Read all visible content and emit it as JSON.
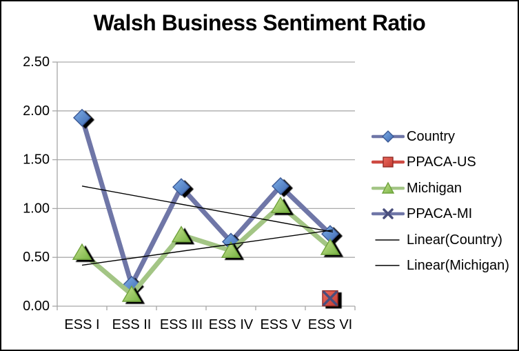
{
  "chart_data": {
    "type": "line",
    "title": "Walsh Business Sentiment Ratio",
    "categories": [
      "ESS I",
      "ESS II",
      "ESS III",
      "ESS IV",
      "ESS V",
      "ESS VI"
    ],
    "y_tick_labels": [
      "0.00",
      "0.50",
      "1.00",
      "1.50",
      "2.00",
      "2.50"
    ],
    "ylim": [
      0,
      2.5
    ],
    "y_tick_step": 0.5,
    "grid": true,
    "legend_position": "right",
    "series": [
      {
        "name": "Country",
        "kind": "data",
        "marker": "diamond",
        "values": [
          1.93,
          0.22,
          1.22,
          0.66,
          1.23,
          0.74
        ],
        "line_color": "#6F76A7",
        "marker_fill_light": "#7FB0E8",
        "marker_fill_dark": "#3E68B1",
        "marker_border": "#3A5894"
      },
      {
        "name": "PPACA-US",
        "kind": "data",
        "marker": "square",
        "values": [
          null,
          null,
          null,
          null,
          null,
          0.08
        ],
        "line_color": "#CE4A42",
        "marker_fill_light": "#EC6A5E",
        "marker_fill_dark": "#C23B32",
        "marker_border": "#8F2B25"
      },
      {
        "name": "Michigan",
        "kind": "data",
        "marker": "triangle",
        "values": [
          0.55,
          0.12,
          0.73,
          0.57,
          1.03,
          0.6
        ],
        "line_color": "#A3C585",
        "marker_fill_light": "#C9E392",
        "marker_fill_dark": "#77B343",
        "marker_border": "#6FA23D"
      },
      {
        "name": "PPACA-MI",
        "kind": "data",
        "marker": "x",
        "values": [
          null,
          null,
          null,
          null,
          null,
          0.08
        ],
        "line_color": "#6F76A7",
        "marker_border": "#494E7D"
      },
      {
        "name": "Linear(Country)",
        "kind": "trendline",
        "endpoints": [
          1.23,
          0.76
        ],
        "line_color": "#000000"
      },
      {
        "name": "Linear(Michigan)",
        "kind": "trendline",
        "endpoints": [
          0.42,
          0.78
        ],
        "line_color": "#000000"
      }
    ]
  },
  "colors": {
    "background": "#FFFFFF",
    "frame_border": "#000000",
    "gridline": "#ABABAB",
    "axis": "#A6A6A6",
    "text": "#000000"
  }
}
